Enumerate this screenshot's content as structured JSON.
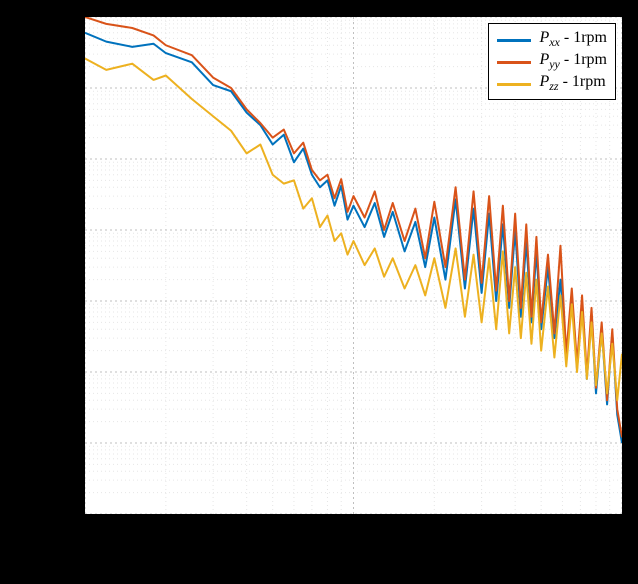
{
  "chart": {
    "type": "line",
    "background_color": "#ffffff",
    "page_background_color": "#000000",
    "plot_border_color": "#000000",
    "grid_major_color": "#bfbfbf",
    "grid_minor_color": "#e6e6e6",
    "grid_major_dash": "2,3",
    "grid_minor_dash": "1,3",
    "xaxis": {
      "scale": "log",
      "min": 0.01,
      "max": 1.0,
      "ticks_major": [
        0.01,
        0.1,
        1.0
      ]
    },
    "yaxis": {
      "scale": "log",
      "min": 100,
      "max": 1000000000,
      "ticks_major": [
        100,
        1000,
        10000,
        100000,
        1000000,
        10000000,
        100000000,
        1000000000
      ]
    },
    "legend": {
      "position": "top-right",
      "border_color": "#000000",
      "background_color": "#ffffff",
      "fontsize": 16,
      "fontfamily": "Times New Roman",
      "items": [
        {
          "label_math": "P_xx",
          "label_suffix": " - 1rpm",
          "color": "#0072bd"
        },
        {
          "label_math": "P_yy",
          "label_suffix": " - 1rpm",
          "color": "#d95319"
        },
        {
          "label_math": "P_zz",
          "label_suffix": " - 1rpm",
          "color": "#edb120"
        }
      ]
    },
    "series": [
      {
        "name": "Pxx_1rpm",
        "color": "#0072bd",
        "linewidth": 2,
        "data": [
          [
            0.01,
            600000000.0
          ],
          [
            0.012,
            450000000.0
          ],
          [
            0.015,
            380000000.0
          ],
          [
            0.018,
            420000000.0
          ],
          [
            0.02,
            310000000.0
          ],
          [
            0.025,
            230000000.0
          ],
          [
            0.03,
            110000000.0
          ],
          [
            0.035,
            90000000.0
          ],
          [
            0.04,
            45000000.0
          ],
          [
            0.045,
            30000000.0
          ],
          [
            0.05,
            16000000.0
          ],
          [
            0.055,
            22000000.0
          ],
          [
            0.06,
            9000000.0
          ],
          [
            0.065,
            14000000.0
          ],
          [
            0.07,
            6000000.0
          ],
          [
            0.075,
            4000000.0
          ],
          [
            0.08,
            5000000.0
          ],
          [
            0.085,
            2200000.0
          ],
          [
            0.09,
            4200000.0
          ],
          [
            0.095,
            1400000.0
          ],
          [
            0.1,
            2200000.0
          ],
          [
            0.11,
            1100000.0
          ],
          [
            0.12,
            2400000.0
          ],
          [
            0.13,
            800000.0
          ],
          [
            0.14,
            1800000.0
          ],
          [
            0.155,
            500000.0
          ],
          [
            0.17,
            1300000.0
          ],
          [
            0.185,
            300000.0
          ],
          [
            0.2,
            1500000.0
          ],
          [
            0.22,
            200000.0
          ],
          [
            0.24,
            2700000.0
          ],
          [
            0.26,
            150000.0
          ],
          [
            0.28,
            2000000.0
          ],
          [
            0.3,
            130000.0
          ],
          [
            0.32,
            1700000.0
          ],
          [
            0.34,
            100000.0
          ],
          [
            0.36,
            1200000.0
          ],
          [
            0.38,
            80000.0
          ],
          [
            0.4,
            1000000.0
          ],
          [
            0.42,
            60000.0
          ],
          [
            0.44,
            700000.0
          ],
          [
            0.46,
            50000.0
          ],
          [
            0.48,
            500000.0
          ],
          [
            0.5,
            40000.0
          ],
          [
            0.53,
            300000.0
          ],
          [
            0.56,
            30000.0
          ],
          [
            0.59,
            200000.0
          ],
          [
            0.62,
            16000.0
          ],
          [
            0.65,
            120000.0
          ],
          [
            0.68,
            11000.0
          ],
          [
            0.71,
            90000.0
          ],
          [
            0.74,
            8000.0
          ],
          [
            0.77,
            60000.0
          ],
          [
            0.8,
            5000.0
          ],
          [
            0.84,
            40000.0
          ],
          [
            0.88,
            3500.0
          ],
          [
            0.92,
            35000.0
          ],
          [
            0.96,
            2500.0
          ],
          [
            1.0,
            1000.0
          ]
        ]
      },
      {
        "name": "Pyy_1rpm",
        "color": "#d95319",
        "linewidth": 2,
        "data": [
          [
            0.01,
            1300000000.0
          ],
          [
            0.012,
            800000000.0
          ],
          [
            0.015,
            700000000.0
          ],
          [
            0.018,
            550000000.0
          ],
          [
            0.02,
            400000000.0
          ],
          [
            0.025,
            290000000.0
          ],
          [
            0.03,
            140000000.0
          ],
          [
            0.035,
            100000000.0
          ],
          [
            0.04,
            50000000.0
          ],
          [
            0.045,
            32000000.0
          ],
          [
            0.05,
            20000000.0
          ],
          [
            0.055,
            26000000.0
          ],
          [
            0.06,
            12000000.0
          ],
          [
            0.065,
            17000000.0
          ],
          [
            0.07,
            7000000.0
          ],
          [
            0.075,
            5000000.0
          ],
          [
            0.08,
            6000000.0
          ],
          [
            0.085,
            2800000.0
          ],
          [
            0.09,
            5200000.0
          ],
          [
            0.095,
            1800000.0
          ],
          [
            0.1,
            3000000.0
          ],
          [
            0.11,
            1500000.0
          ],
          [
            0.12,
            3500000.0
          ],
          [
            0.13,
            1000000.0
          ],
          [
            0.14,
            2400000.0
          ],
          [
            0.155,
            700000.0
          ],
          [
            0.17,
            2000000.0
          ],
          [
            0.185,
            400000.0
          ],
          [
            0.2,
            2500000.0
          ],
          [
            0.22,
            300000.0
          ],
          [
            0.24,
            4000000.0
          ],
          [
            0.26,
            200000.0
          ],
          [
            0.28,
            3500000.0
          ],
          [
            0.3,
            180000.0
          ],
          [
            0.32,
            3000000.0
          ],
          [
            0.34,
            140000.0
          ],
          [
            0.36,
            2200000.0
          ],
          [
            0.38,
            100000.0
          ],
          [
            0.4,
            1700000.0
          ],
          [
            0.42,
            80000.0
          ],
          [
            0.44,
            1200000.0
          ],
          [
            0.46,
            60000.0
          ],
          [
            0.48,
            800000.0
          ],
          [
            0.5,
            50000.0
          ],
          [
            0.53,
            450000.0
          ],
          [
            0.56,
            35000.0
          ],
          [
            0.59,
            600000.0
          ],
          [
            0.62,
            18000.0
          ],
          [
            0.65,
            150000.0
          ],
          [
            0.68,
            13000.0
          ],
          [
            0.71,
            120000.0
          ],
          [
            0.74,
            9000.0
          ],
          [
            0.77,
            80000.0
          ],
          [
            0.8,
            6000.0
          ],
          [
            0.84,
            50000.0
          ],
          [
            0.88,
            4000.0
          ],
          [
            0.92,
            40000.0
          ],
          [
            0.96,
            3000.0
          ],
          [
            1.0,
            1200.0
          ]
        ]
      },
      {
        "name": "Pzz_1rpm",
        "color": "#edb120",
        "linewidth": 2,
        "data": [
          [
            0.01,
            260000000.0
          ],
          [
            0.012,
            180000000.0
          ],
          [
            0.015,
            220000000.0
          ],
          [
            0.018,
            130000000.0
          ],
          [
            0.02,
            150000000.0
          ],
          [
            0.025,
            70000000.0
          ],
          [
            0.03,
            40000000.0
          ],
          [
            0.035,
            25000000.0
          ],
          [
            0.04,
            12000000.0
          ],
          [
            0.045,
            16000000.0
          ],
          [
            0.05,
            6000000.0
          ],
          [
            0.055,
            4500000.0
          ],
          [
            0.06,
            5000000.0
          ],
          [
            0.065,
            2000000.0
          ],
          [
            0.07,
            2800000.0
          ],
          [
            0.075,
            1100000.0
          ],
          [
            0.08,
            1600000.0
          ],
          [
            0.085,
            700000.0
          ],
          [
            0.09,
            900000.0
          ],
          [
            0.095,
            450000.0
          ],
          [
            0.1,
            700000.0
          ],
          [
            0.11,
            320000.0
          ],
          [
            0.12,
            550000.0
          ],
          [
            0.13,
            220000.0
          ],
          [
            0.14,
            400000.0
          ],
          [
            0.155,
            150000.0
          ],
          [
            0.17,
            320000.0
          ],
          [
            0.185,
            120000.0
          ],
          [
            0.2,
            400000.0
          ],
          [
            0.22,
            80000.0
          ],
          [
            0.24,
            550000.0
          ],
          [
            0.26,
            60000.0
          ],
          [
            0.28,
            450000.0
          ],
          [
            0.3,
            50000.0
          ],
          [
            0.32,
            400000.0
          ],
          [
            0.34,
            40000.0
          ],
          [
            0.36,
            500000.0
          ],
          [
            0.38,
            35000.0
          ],
          [
            0.4,
            300000.0
          ],
          [
            0.42,
            30000.0
          ],
          [
            0.44,
            250000.0
          ],
          [
            0.46,
            25000.0
          ],
          [
            0.48,
            200000.0
          ],
          [
            0.5,
            20000.0
          ],
          [
            0.53,
            160000.0
          ],
          [
            0.56,
            16000.0
          ],
          [
            0.59,
            120000.0
          ],
          [
            0.62,
            12000.0
          ],
          [
            0.65,
            90000.0
          ],
          [
            0.68,
            10000.0
          ],
          [
            0.71,
            70000.0
          ],
          [
            0.74,
            8000.0
          ],
          [
            0.77,
            50000.0
          ],
          [
            0.8,
            6500.0
          ],
          [
            0.84,
            35000.0
          ],
          [
            0.88,
            5000.0
          ],
          [
            0.92,
            25000.0
          ],
          [
            0.96,
            4000.0
          ],
          [
            1.0,
            18000.0
          ]
        ]
      }
    ]
  },
  "legend_text": {
    "s0_prefix": "P",
    "s0_sub": "xx",
    "s0_suffix": " - 1rpm",
    "s1_prefix": "P",
    "s1_sub": "yy",
    "s1_suffix": " - 1rpm",
    "s2_prefix": "P",
    "s2_sub": "zz",
    "s2_suffix": " - 1rpm"
  }
}
